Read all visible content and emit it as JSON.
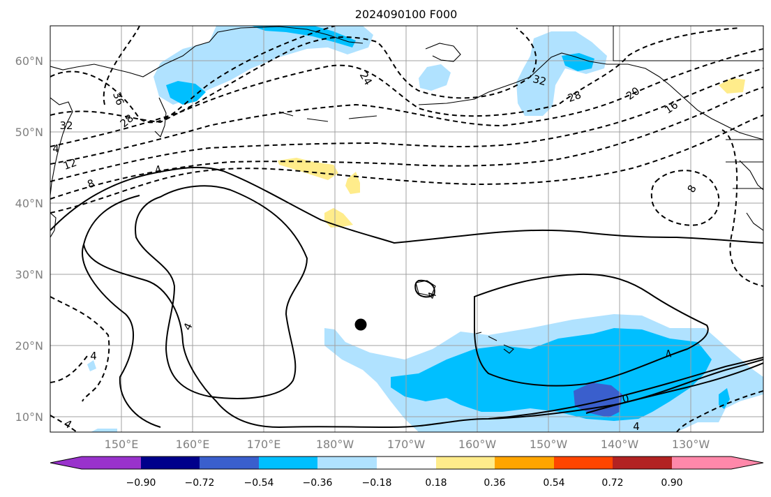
{
  "title": "2024090100 F000",
  "map": {
    "lat_labels": [
      "60°N",
      "50°N",
      "40°N",
      "30°N",
      "20°N",
      "10°N"
    ],
    "lon_labels": [
      "150°E",
      "160°E",
      "170°E",
      "180°W",
      "170°W",
      "160°W",
      "150°W",
      "140°W",
      "130°W"
    ],
    "contour_labels": [
      "36",
      "32",
      "28",
      "24",
      "28",
      "20",
      "32",
      "16",
      "12",
      "8",
      "4",
      "4",
      "4",
      "8",
      "4",
      "4",
      "4",
      "0",
      "4",
      "4"
    ]
  },
  "colorbar": {
    "labels": [
      "−0.90",
      "−0.72",
      "−0.54",
      "−0.36",
      "−0.18",
      "0.18",
      "0.36",
      "0.54",
      "0.72",
      "0.90"
    ],
    "colors": [
      "#9932cc",
      "#00008b",
      "#3a5fcd",
      "#00bfff",
      "#b0e2ff",
      "#ffffff",
      "#ffec8b",
      "#ffa500",
      "#ff4500",
      "#b22222",
      "#ff88aa"
    ]
  },
  "colors": {
    "light_blue": "#b0e2ff",
    "medium_blue": "#00bfff",
    "dark_blue": "#3a5fcd",
    "yellow": "#ffec8b",
    "gridline": "#a0a0a0"
  }
}
